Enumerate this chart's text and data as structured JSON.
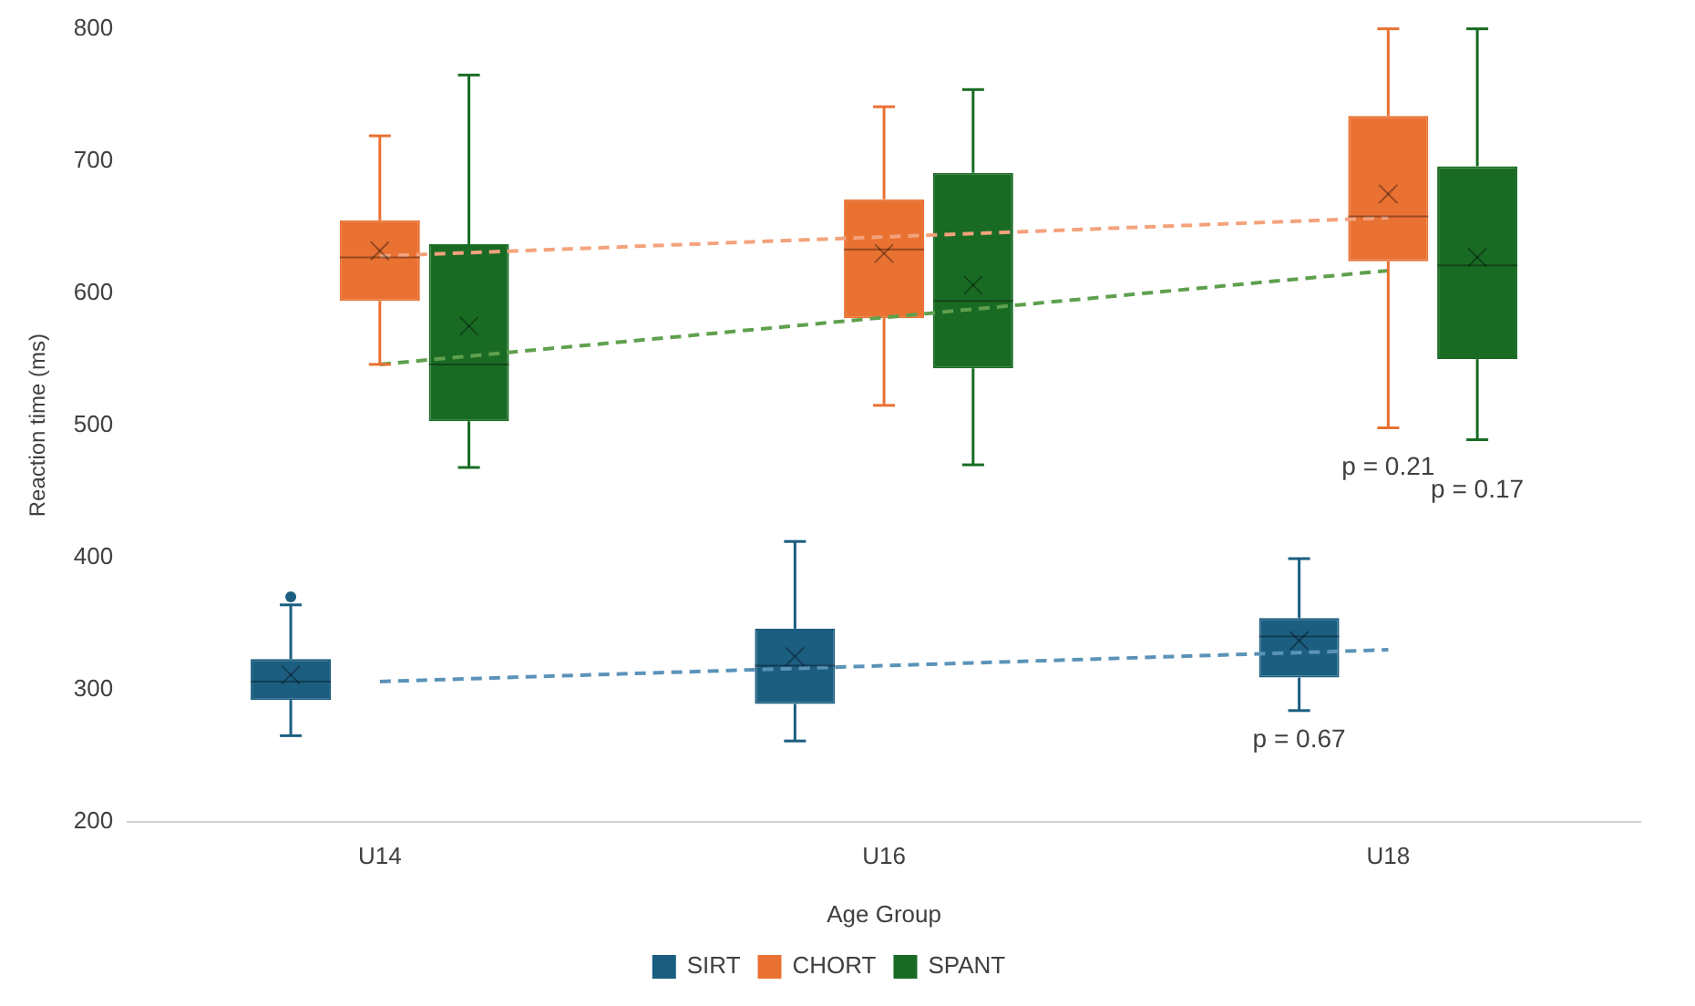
{
  "chart_data": {
    "type": "box",
    "xlabel": "Age Group",
    "ylabel": "Reaction time (ms)",
    "categories": [
      "U14",
      "U16",
      "U18"
    ],
    "ylim": [
      200,
      800
    ],
    "yticks": [
      200,
      300,
      400,
      500,
      600,
      700,
      800
    ],
    "grid": false,
    "legend": "bottom",
    "series": [
      {
        "name": "SIRT",
        "color": "#1b5e80",
        "boxes": [
          {
            "low": 265,
            "q1": 292,
            "median": 306,
            "q3": 323,
            "high": 364,
            "mean": 311,
            "outliers": [
              370
            ]
          },
          {
            "low": 261,
            "q1": 289,
            "median": 318,
            "q3": 346,
            "high": 412,
            "mean": 325
          },
          {
            "low": 284,
            "q1": 309,
            "median": 340,
            "q3": 354,
            "high": 399,
            "mean": 337
          }
        ]
      },
      {
        "name": "CHORT",
        "color": "#e97132",
        "boxes": [
          {
            "low": 546,
            "q1": 594,
            "median": 627,
            "q3": 655,
            "high": 719,
            "mean": 632
          },
          {
            "low": 515,
            "q1": 581,
            "median": 633,
            "q3": 671,
            "high": 741,
            "mean": 630
          },
          {
            "low": 498,
            "q1": 624,
            "median": 658,
            "q3": 734,
            "high": 800,
            "mean": 675
          }
        ]
      },
      {
        "name": "SPANT",
        "color": "#196b24",
        "boxes": [
          {
            "low": 468,
            "q1": 503,
            "median": 546,
            "q3": 637,
            "high": 765,
            "mean": 575
          },
          {
            "low": 470,
            "q1": 543,
            "median": 594,
            "q3": 691,
            "high": 754,
            "mean": 606
          },
          {
            "low": 489,
            "q1": 550,
            "median": 621,
            "q3": 696,
            "high": 800,
            "mean": 627
          }
        ]
      },
      {
        "type": "line",
        "color": "#5b93b8",
        "x": [
          "U14",
          "U18"
        ],
        "values": [
          306,
          330
        ],
        "line_style": "dashed",
        "marker": "none"
      },
      {
        "type": "line",
        "color": "#f4a27c",
        "x": [
          "U14",
          "U18"
        ],
        "values": [
          628,
          657
        ],
        "line_style": "dashed",
        "marker": "none"
      },
      {
        "type": "line",
        "color": "#5fa04e",
        "x": [
          "U14",
          "U18"
        ],
        "values": [
          546,
          617
        ],
        "line_style": "dashed",
        "marker": "none"
      }
    ],
    "annotations": [
      "p = 0.67",
      "p = 0.21",
      "p = 0.17"
    ]
  }
}
